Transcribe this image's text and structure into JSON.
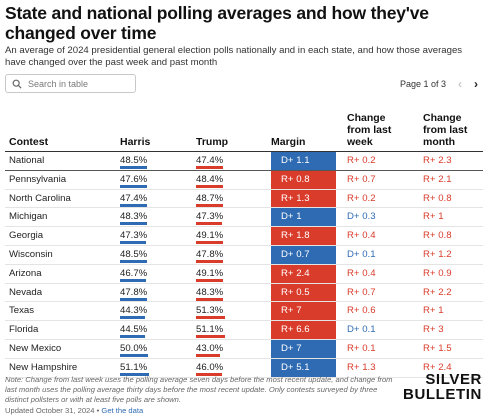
{
  "title": "State and national polling averages and how they've changed over time",
  "subtitle": "An average of 2024 presidential general election polls nationally and in each state, and how those averages have changed over the past week and past month",
  "search": {
    "placeholder": "Search in table",
    "icon": "search-icon"
  },
  "pager": {
    "label": "Page 1 of 3",
    "prev_icon": "chevron-left-icon",
    "next_icon": "chevron-right-icon"
  },
  "columns": {
    "contest": "Contest",
    "harris": "Harris",
    "trump": "Trump",
    "margin": "Margin",
    "change_week": [
      "Change",
      "from last",
      "week"
    ],
    "change_month": [
      "Change",
      "from last",
      "month"
    ]
  },
  "colors": {
    "dem": "#2f6bb3",
    "rep": "#d93c2b",
    "dem_text": "#2f6bb3",
    "rep_text": "#d93c2b"
  },
  "rows": [
    {
      "contest": "National",
      "harris": "48.5%",
      "trump": "47.4%",
      "margin": "D+ 1.1",
      "margin_party": "D",
      "week": "R+ 0.2",
      "week_party": "R",
      "month": "R+ 2.3",
      "month_party": "R"
    },
    {
      "contest": "Pennsylvania",
      "harris": "47.6%",
      "trump": "48.4%",
      "margin": "R+ 0.8",
      "margin_party": "R",
      "week": "R+ 0.7",
      "week_party": "R",
      "month": "R+ 2.1",
      "month_party": "R"
    },
    {
      "contest": "North Carolina",
      "harris": "47.4%",
      "trump": "48.7%",
      "margin": "R+ 1.3",
      "margin_party": "R",
      "week": "R+ 0.2",
      "week_party": "R",
      "month": "R+ 0.8",
      "month_party": "R"
    },
    {
      "contest": "Michigan",
      "harris": "48.3%",
      "trump": "47.3%",
      "margin": "D+ 1",
      "margin_party": "D",
      "week": "D+ 0.3",
      "week_party": "D",
      "month": "R+ 1",
      "month_party": "R"
    },
    {
      "contest": "Georgia",
      "harris": "47.3%",
      "trump": "49.1%",
      "margin": "R+ 1.8",
      "margin_party": "R",
      "week": "R+ 0.4",
      "week_party": "R",
      "month": "R+ 0.8",
      "month_party": "R"
    },
    {
      "contest": "Wisconsin",
      "harris": "48.5%",
      "trump": "47.8%",
      "margin": "D+ 0.7",
      "margin_party": "D",
      "week": "D+ 0.1",
      "week_party": "D",
      "month": "R+ 1.2",
      "month_party": "R"
    },
    {
      "contest": "Arizona",
      "harris": "46.7%",
      "trump": "49.1%",
      "margin": "R+ 2.4",
      "margin_party": "R",
      "week": "R+ 0.4",
      "week_party": "R",
      "month": "R+ 0.9",
      "month_party": "R"
    },
    {
      "contest": "Nevada",
      "harris": "47.8%",
      "trump": "48.3%",
      "margin": "R+ 0.5",
      "margin_party": "R",
      "week": "R+ 0.7",
      "week_party": "R",
      "month": "R+ 2.2",
      "month_party": "R"
    },
    {
      "contest": "Texas",
      "harris": "44.3%",
      "trump": "51.3%",
      "margin": "R+ 7",
      "margin_party": "R",
      "week": "R+ 0.6",
      "week_party": "R",
      "month": "R+ 1",
      "month_party": "R"
    },
    {
      "contest": "Florida",
      "harris": "44.5%",
      "trump": "51.1%",
      "margin": "R+ 6.6",
      "margin_party": "R",
      "week": "D+ 0.1",
      "week_party": "D",
      "month": "R+ 3",
      "month_party": "R"
    },
    {
      "contest": "New Mexico",
      "harris": "50.0%",
      "trump": "43.0%",
      "margin": "D+ 7",
      "margin_party": "D",
      "week": "R+ 0.1",
      "week_party": "R",
      "month": "R+ 1.5",
      "month_party": "R"
    },
    {
      "contest": "New Hampshire",
      "harris": "51.1%",
      "trump": "46.0%",
      "margin": "D+ 5.1",
      "margin_party": "D",
      "week": "R+ 1.3",
      "week_party": "R",
      "month": "R+ 2.4",
      "month_party": "R"
    }
  ],
  "note": "Note: Change from last week uses the polling average seven days before the most recent update, and change from last month uses the polling average thirty days before the most recent update. Only contests surveyed by three distinct pollsters or with at least five polls are shown.",
  "updated": "Updated October 31, 2024 •",
  "get_data": "Get the data",
  "logo": [
    "SILVER",
    "BULLETIN"
  ]
}
